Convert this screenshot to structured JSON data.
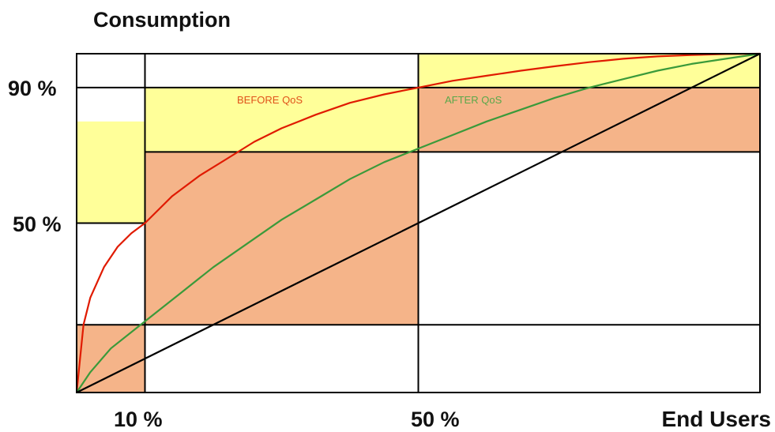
{
  "chart_data": {
    "type": "line",
    "title": "Consumption",
    "xlabel": "End Users",
    "ylabel": "",
    "xlim": [
      0,
      100
    ],
    "ylim": [
      0,
      100
    ],
    "x_tick_labels": [
      {
        "value": 10,
        "label": "10 %"
      },
      {
        "value": 50,
        "label": "50 %"
      }
    ],
    "y_tick_labels": [
      {
        "value": 90,
        "label": "90 %"
      },
      {
        "value": 50,
        "label": "50 %"
      }
    ],
    "grid": false,
    "series": [
      {
        "name": "BEFORE QoS",
        "color": "#e01a00",
        "x": [
          0,
          1,
          2,
          4,
          6,
          8,
          10,
          14,
          18,
          22,
          26,
          30,
          35,
          40,
          45,
          50,
          55,
          60,
          65,
          70,
          75,
          80,
          85,
          90,
          95,
          100
        ],
        "y": [
          0,
          20,
          28,
          37,
          43,
          47,
          50,
          58,
          64,
          69,
          74,
          78,
          82,
          85.5,
          88,
          90,
          92,
          93.5,
          95,
          96.3,
          97.5,
          98.5,
          99.2,
          99.6,
          99.9,
          100
        ]
      },
      {
        "name": "AFTER QoS",
        "color": "#3a9a3a",
        "x": [
          0,
          2,
          5,
          10,
          15,
          20,
          25,
          30,
          35,
          40,
          45,
          50,
          55,
          60,
          65,
          70,
          75,
          80,
          85,
          90,
          95,
          100
        ],
        "y": [
          0,
          6,
          13,
          21,
          29,
          37,
          44,
          51,
          57,
          63,
          68,
          72,
          76,
          80,
          83.5,
          87,
          90,
          92.5,
          95,
          97,
          98.5,
          100
        ]
      },
      {
        "name": "",
        "color": "#000000",
        "x": [
          0,
          100
        ],
        "y": [
          0,
          100
        ]
      }
    ],
    "shaded_regions": [
      {
        "x": [
          0,
          10
        ],
        "y": [
          50,
          80
        ],
        "color": "#ffff99"
      },
      {
        "x": [
          0,
          10
        ],
        "y": [
          0,
          20
        ],
        "color": "#f5b489"
      },
      {
        "x": [
          10,
          50
        ],
        "y": [
          71,
          90
        ],
        "color": "#ffff99"
      },
      {
        "x": [
          10,
          50
        ],
        "y": [
          20,
          71
        ],
        "color": "#f5b489"
      },
      {
        "x": [
          50,
          100
        ],
        "y": [
          90,
          100
        ],
        "color": "#ffff99"
      },
      {
        "x": [
          50,
          100
        ],
        "y": [
          71,
          90
        ],
        "color": "#f5b489"
      }
    ],
    "reference_lines": {
      "horizontal": [
        {
          "y": 90,
          "x": [
            0,
            100
          ]
        },
        {
          "y": 71,
          "x": [
            10,
            100
          ]
        },
        {
          "y": 50,
          "x": [
            0,
            10
          ]
        },
        {
          "y": 20,
          "x": [
            0,
            100
          ]
        }
      ],
      "vertical": [
        {
          "x": 10,
          "y": [
            0,
            100
          ]
        },
        {
          "x": 50,
          "y": [
            0,
            100
          ]
        }
      ]
    },
    "colors": {
      "yellow": "#ffff99",
      "orange": "#f5b489"
    }
  }
}
